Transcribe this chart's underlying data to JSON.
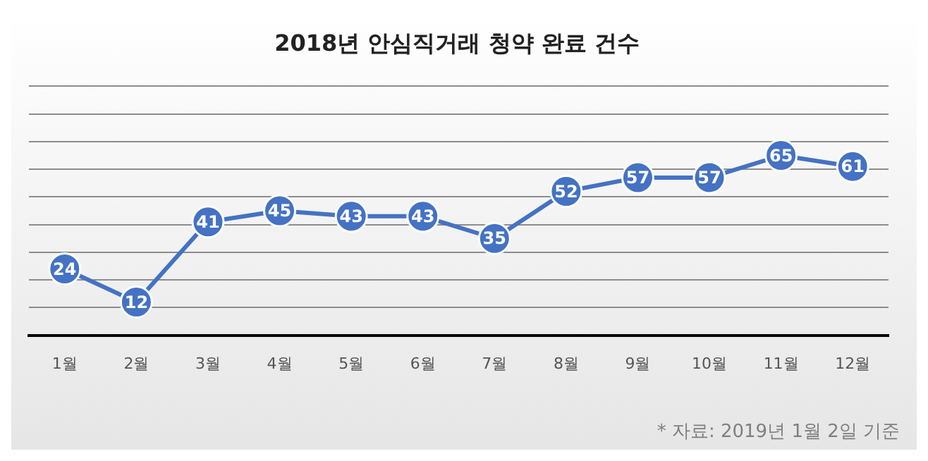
{
  "chart_data": {
    "type": "line",
    "title": "2018년 안심직거래 청약 완료 건수",
    "categories": [
      "1월",
      "2월",
      "3월",
      "4월",
      "5월",
      "6월",
      "7월",
      "8월",
      "9월",
      "10월",
      "11월",
      "12월"
    ],
    "series": [
      {
        "color": "#4472c4",
        "values": [
          24,
          12,
          41,
          45,
          43,
          43,
          35,
          52,
          57,
          57,
          65,
          61
        ]
      }
    ],
    "ylim": [
      0,
      90
    ],
    "yticks": [
      0,
      {
        "value": 10,
        "label": null
      },
      {
        "value": 20,
        "label": null
      },
      {
        "value": 30,
        "label": null
      },
      {
        "value": 40,
        "label": null
      },
      {
        "value": 50,
        "label": null
      },
      {
        "value": 60,
        "label": null
      },
      {
        "value": 70,
        "label": null
      },
      {
        "value": 80,
        "label": null
      },
      {
        "value": 90,
        "label": null
      }
    ],
    "grid": "y",
    "tick_labels": "x",
    "marker": "circle",
    "line_style": "solid",
    "data_labels": true,
    "legend": false,
    "annotations": [
      "* 자료: 2019년 1월 2일 기준"
    ]
  }
}
